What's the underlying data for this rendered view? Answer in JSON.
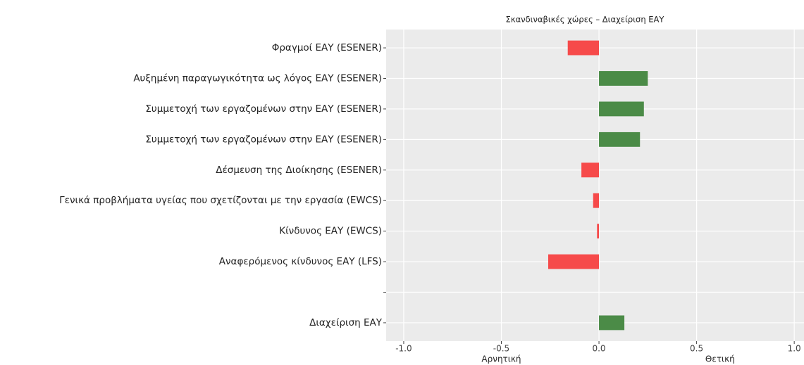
{
  "chart_data": {
    "type": "barh",
    "title": "Σκανδιναβικές χώρες – Διαχείριση ΕΑΥ",
    "categories": [
      "Φραγμοί ΕΑΥ (ESENER)",
      "Αυξημένη παραγωγικότητα ως λόγος ΕΑΥ (ESENER)",
      "Συμμετοχή των εργαζομένων στην ΕΑΥ (ESENER)",
      "Συμμετοχή των εργαζομένων στην ΕΑΥ (ESENER)",
      "Δέσμευση της Διοίκησης (ESENER)",
      "Γενικά προβλήματα υγείας που σχετίζονται με την εργασία (EWCS)",
      "Κίνδυνος ΕΑΥ (EWCS)",
      "Αναφερόμενος κίνδυνος ΕΑΥ (LFS)",
      null,
      "Διαχείριση ΕΑΥ"
    ],
    "values": [
      -0.16,
      0.25,
      0.23,
      0.21,
      -0.09,
      -0.03,
      -0.01,
      -0.26,
      null,
      0.13
    ],
    "colors": {
      "negative": "#f64a4a",
      "positive": "#4b8b47"
    },
    "xlim": [
      -1.09,
      1.05
    ],
    "xticks": [
      {
        "value": -1,
        "label": "-1.0"
      },
      -0.5,
      {
        "value": 0,
        "label": "0.0"
      },
      0.5,
      {
        "value": 1,
        "label": "1.0"
      }
    ],
    "annotations": [
      {
        "text": "Αρνητική",
        "x": -0.5
      },
      {
        "text": "Θετική",
        "x": 0.62
      }
    ],
    "grid": true
  }
}
